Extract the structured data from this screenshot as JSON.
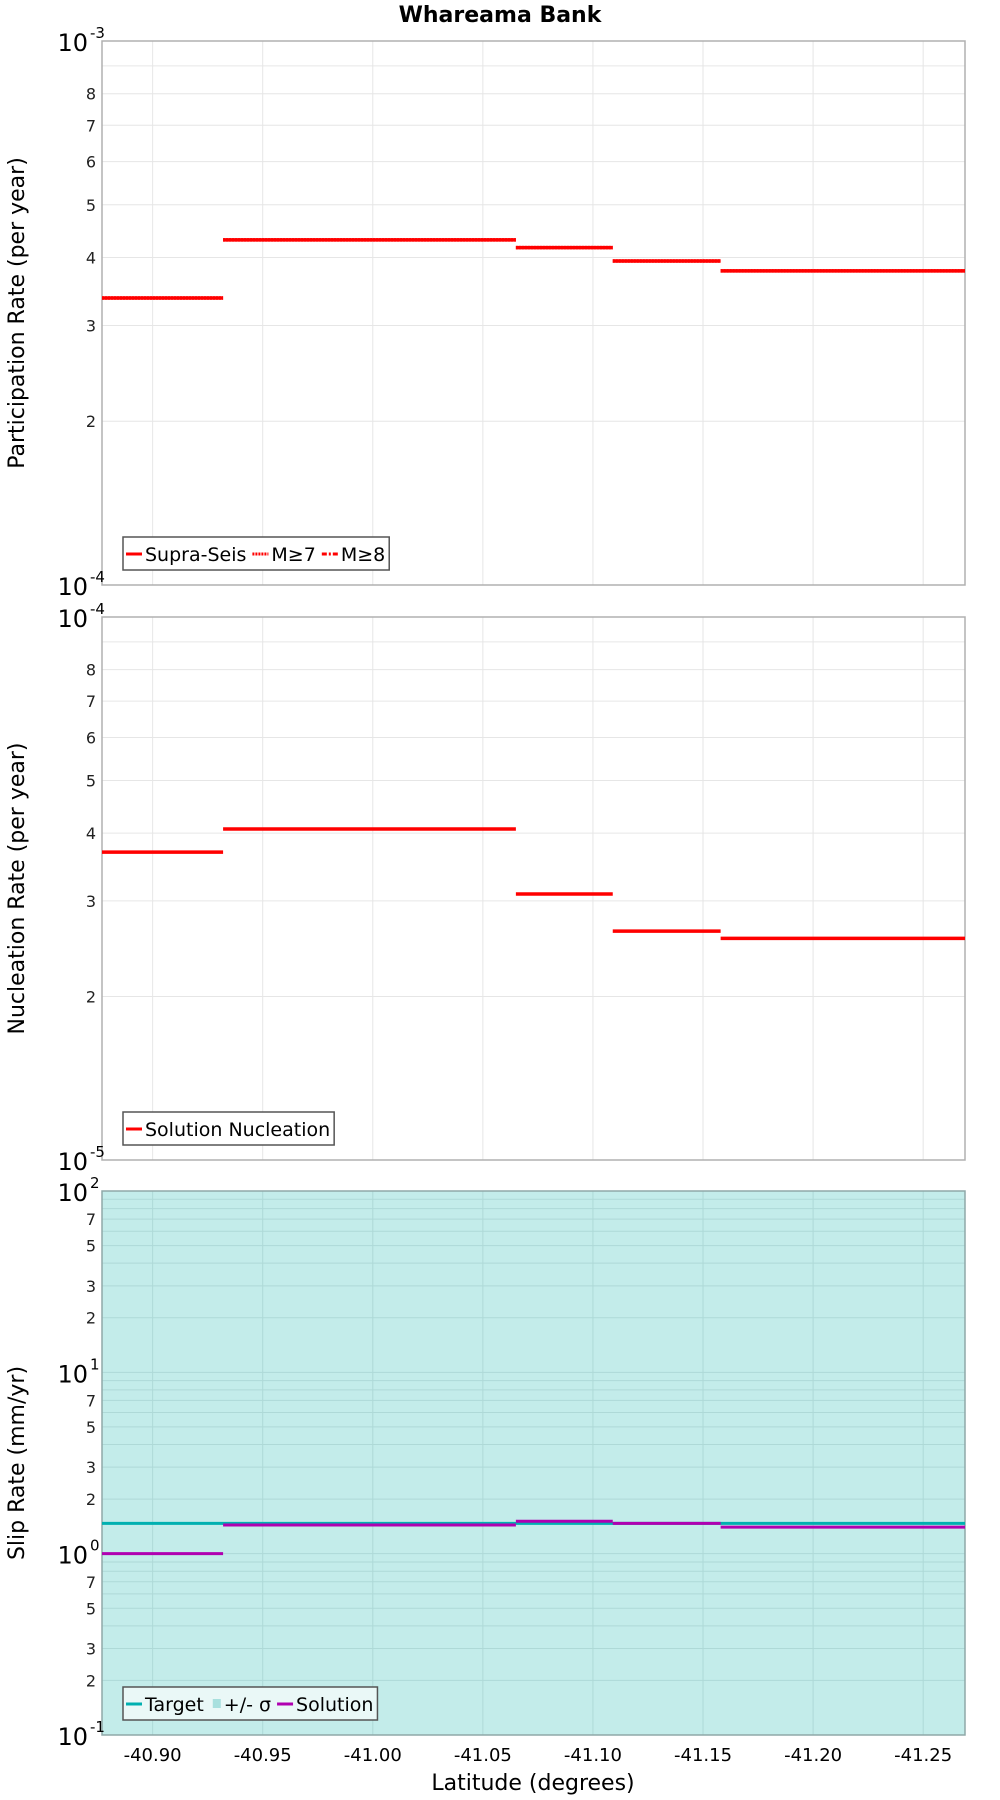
{
  "title": "Whareama Bank",
  "x_axis": {
    "label": "Latitude (degrees)",
    "range": [
      -40.877,
      -41.269
    ],
    "ticks": [
      "-40.90",
      "-40.95",
      "-41.00",
      "-41.05",
      "-41.10",
      "-41.15",
      "-41.20",
      "-41.25"
    ],
    "tick_values": [
      -40.9,
      -40.95,
      -41.0,
      -41.05,
      -41.1,
      -41.15,
      -41.2,
      -41.25
    ]
  },
  "colors": {
    "red": "#ff0000",
    "target": "#00b0b0",
    "solution": "#b000b0",
    "sigma_fill": "#c3ecea",
    "grid": "#e6e6e6",
    "grid_slip": "#aed9d7",
    "frame": "#b0b0b0"
  },
  "panels": [
    {
      "id": "participation",
      "ylabel": "Participation Rate (per year)",
      "ymin_exp": -4,
      "ymax_exp": -3,
      "major_labels": [
        {
          "base": "10",
          "exp": "-3"
        },
        {
          "base": "10",
          "exp": "-4"
        }
      ],
      "minor_labels": [
        "2",
        "3",
        "4",
        "5",
        "6",
        "7",
        "8"
      ],
      "legend": [
        "Supra-Seis",
        "M≥7",
        "M≥8"
      ]
    },
    {
      "id": "nucleation",
      "ylabel": "Nucleation Rate (per year)",
      "ymin_exp": -5,
      "ymax_exp": -4,
      "major_labels": [
        {
          "base": "10",
          "exp": "-4"
        },
        {
          "base": "10",
          "exp": "-5"
        }
      ],
      "minor_labels": [
        "2",
        "3",
        "4",
        "5",
        "6",
        "7",
        "8"
      ],
      "legend": [
        "Solution Nucleation"
      ]
    },
    {
      "id": "slip",
      "ylabel": "Slip Rate (mm/yr)",
      "ymin_exp": -1,
      "ymax_exp": 2,
      "major_labels": [
        {
          "base": "10",
          "exp": "2"
        },
        {
          "base": "10",
          "exp": "1"
        },
        {
          "base": "10",
          "exp": "0"
        },
        {
          "base": "10",
          "exp": "-1"
        }
      ],
      "minor_labels": [
        "2",
        "3",
        "5",
        "7"
      ],
      "legend": [
        "Target",
        "+/- σ",
        "Solution"
      ]
    }
  ],
  "chart_data": [
    {
      "type": "line",
      "title": "Whareama Bank",
      "subtitle": "Participation Rate",
      "xlabel": "Latitude (degrees)",
      "ylabel": "Participation Rate (per year)",
      "yscale": "log",
      "ylim": [
        0.0001,
        0.001
      ],
      "xlim": [
        -40.877,
        -41.269
      ],
      "grid": true,
      "legend_position": "lower-left",
      "series": [
        {
          "name": "Supra-Seis",
          "style": "solid",
          "segments": [
            {
              "x0": -40.877,
              "x1": -40.932,
              "y": 0.000337
            },
            {
              "x0": -40.932,
              "x1": -41.065,
              "y": 0.000431
            },
            {
              "x0": -41.065,
              "x1": -41.109,
              "y": 0.000417
            },
            {
              "x0": -41.109,
              "x1": -41.158,
              "y": 0.000394
            },
            {
              "x0": -41.158,
              "x1": -41.269,
              "y": 0.000378
            }
          ]
        },
        {
          "name": "M≥7",
          "style": "dotted",
          "segments": [
            {
              "x0": -40.877,
              "x1": -40.932,
              "y": 0.000337
            },
            {
              "x0": -40.932,
              "x1": -41.065,
              "y": 0.000431
            },
            {
              "x0": -41.065,
              "x1": -41.109,
              "y": 0.000417
            },
            {
              "x0": -41.109,
              "x1": -41.158,
              "y": 0.000394
            },
            {
              "x0": -41.158,
              "x1": -41.269,
              "y": 0.000378
            }
          ]
        },
        {
          "name": "M≥8",
          "style": "dash-dot",
          "segments": []
        }
      ]
    },
    {
      "type": "line",
      "subtitle": "Nucleation Rate",
      "xlabel": "Latitude (degrees)",
      "ylabel": "Nucleation Rate (per year)",
      "yscale": "log",
      "ylim": [
        1e-05,
        0.0001
      ],
      "xlim": [
        -40.877,
        -41.269
      ],
      "grid": true,
      "legend_position": "lower-left",
      "series": [
        {
          "name": "Solution Nucleation",
          "style": "solid",
          "segments": [
            {
              "x0": -40.877,
              "x1": -40.932,
              "y": 3.69e-05
            },
            {
              "x0": -40.932,
              "x1": -41.065,
              "y": 4.07e-05
            },
            {
              "x0": -41.065,
              "x1": -41.109,
              "y": 3.09e-05
            },
            {
              "x0": -41.109,
              "x1": -41.158,
              "y": 2.64e-05
            },
            {
              "x0": -41.158,
              "x1": -41.269,
              "y": 2.56e-05
            }
          ]
        }
      ]
    },
    {
      "type": "line",
      "subtitle": "Slip Rate",
      "xlabel": "Latitude (degrees)",
      "ylabel": "Slip Rate (mm/yr)",
      "yscale": "log",
      "ylim": [
        0.1,
        100
      ],
      "xlim": [
        -40.877,
        -41.269
      ],
      "grid": true,
      "legend_position": "lower-left",
      "series": [
        {
          "name": "Target",
          "style": "solid",
          "segments": [
            {
              "x0": -40.877,
              "x1": -41.269,
              "y": 1.47
            }
          ]
        },
        {
          "name": "+/- σ",
          "style": "fill",
          "band": {
            "x0": -40.877,
            "x1": -41.269,
            "y0": 0.1,
            "y1": 100
          }
        },
        {
          "name": "Solution",
          "style": "solid",
          "segments": [
            {
              "x0": -40.877,
              "x1": -40.932,
              "y": 1.0
            },
            {
              "x0": -40.932,
              "x1": -41.065,
              "y": 1.44
            },
            {
              "x0": -41.065,
              "x1": -41.109,
              "y": 1.51
            },
            {
              "x0": -41.109,
              "x1": -41.158,
              "y": 1.47
            },
            {
              "x0": -41.158,
              "x1": -41.269,
              "y": 1.4
            }
          ]
        }
      ]
    }
  ]
}
